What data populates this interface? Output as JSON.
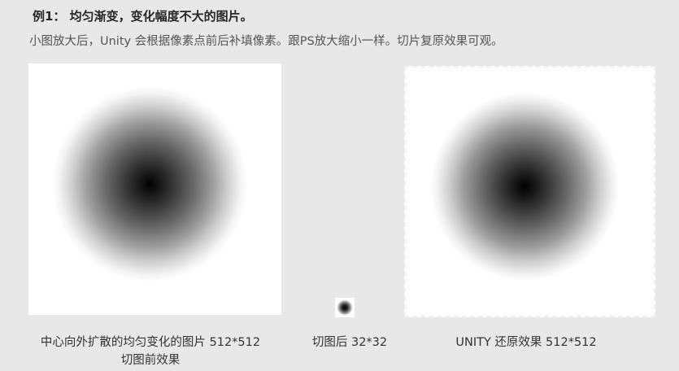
{
  "heading": "例1： 均匀渐变，变化幅度不大的图片。",
  "subheading": "小图放大后，Unity 会根据像素点前后补填像素。跟PS放大缩小一样。切片复原效果可观。",
  "captions": {
    "left_line1": "中心向外扩散的均匀变化的图片 512*512",
    "left_line2": "切图前效果",
    "middle": "切图后 32*32",
    "right": "UNITY 还原效果 512*512"
  },
  "colors": {
    "page_background": "#e8e8e8",
    "panel_background": "#ffffff",
    "gradient_center": "#000000"
  }
}
